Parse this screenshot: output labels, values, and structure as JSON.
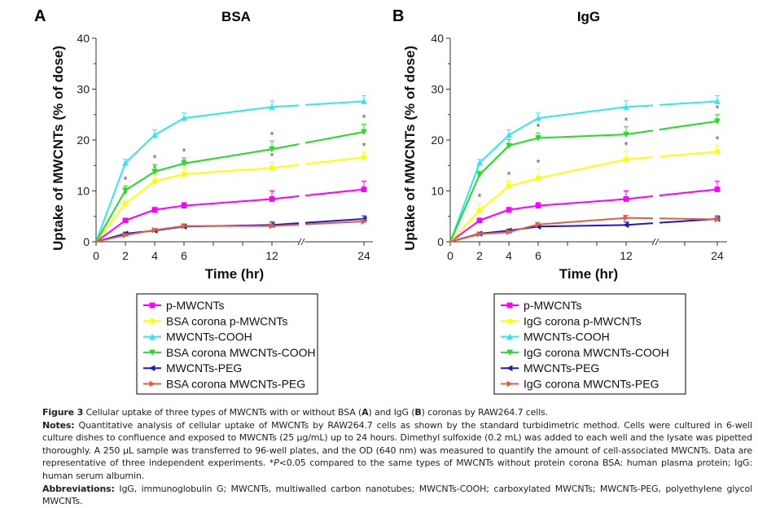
{
  "chart_data": [
    {
      "type": "line",
      "panel_label": "A",
      "title": "BSA",
      "xlabel": "Time (hr)",
      "ylabel": "Uptake of MWCNTs (% of dose)",
      "x": [
        0,
        2,
        4,
        6,
        12,
        24
      ],
      "xticks": [
        "0",
        "2",
        "4",
        "6",
        "12",
        "24"
      ],
      "yticks": [
        "0",
        "10",
        "20",
        "30",
        "40"
      ],
      "ylim": [
        0,
        40
      ],
      "axis_break": "between 12 and 24",
      "grid": false,
      "legend_position": "bottom",
      "series": [
        {
          "name": "p-MWCNTs",
          "color": "#ff00ff",
          "marker": "square",
          "values": [
            0,
            4.2,
            6.3,
            7.1,
            8.4,
            10.3
          ],
          "errors": [
            0,
            0.4,
            0.4,
            0.6,
            1.6,
            1.6
          ],
          "sig": [
            false,
            false,
            false,
            false,
            false,
            false
          ]
        },
        {
          "name": "BSA corona p-MWCNTs",
          "color": "#ffff00",
          "marker": "circle",
          "values": [
            0,
            7.5,
            11.9,
            13.3,
            14.5,
            16.6
          ],
          "errors": [
            0,
            0.7,
            1.4,
            1.2,
            1.1,
            1.0
          ],
          "sig": [
            false,
            true,
            true,
            true,
            true,
            true
          ]
        },
        {
          "name": "MWCNTs-COOH",
          "color": "#33e6f2",
          "marker": "triangle-up",
          "values": [
            0,
            15.5,
            21.0,
            24.3,
            26.5,
            27.6
          ],
          "errors": [
            0,
            0.7,
            1.0,
            1.0,
            1.2,
            1.1
          ],
          "sig": [
            false,
            false,
            false,
            false,
            false,
            false
          ]
        },
        {
          "name": "BSA corona MWCNTs-COOH",
          "color": "#22dd22",
          "marker": "triangle-down",
          "values": [
            0,
            10.1,
            13.8,
            15.4,
            18.2,
            21.6
          ],
          "errors": [
            0,
            0.9,
            1.4,
            1.1,
            1.6,
            1.5
          ],
          "sig": [
            false,
            true,
            true,
            true,
            true,
            true
          ]
        },
        {
          "name": "MWCNTs-PEG",
          "color": "#1a1acc",
          "marker": "triangle-left",
          "values": [
            0,
            1.6,
            2.2,
            3.0,
            3.3,
            4.5
          ],
          "errors": [
            0,
            0.3,
            0.3,
            0.5,
            0.6,
            0.6
          ],
          "sig": [
            false,
            false,
            false,
            false,
            false,
            false
          ]
        },
        {
          "name": "BSA corona MWCNTs-PEG",
          "color": "#e06040",
          "marker": "triangle-right",
          "values": [
            0,
            1.3,
            2.3,
            3.1,
            3.1,
            4.0
          ],
          "errors": [
            0,
            0.3,
            0.3,
            0.4,
            0.4,
            0.4
          ],
          "sig": [
            false,
            false,
            false,
            false,
            false,
            false
          ]
        }
      ]
    },
    {
      "type": "line",
      "panel_label": "B",
      "title": "IgG",
      "xlabel": "Time (hr)",
      "ylabel": "Uptake of MWCNTs (% of dose)",
      "x": [
        0,
        2,
        4,
        6,
        12,
        24
      ],
      "xticks": [
        "0",
        "2",
        "4",
        "6",
        "12",
        "24"
      ],
      "yticks": [
        "0",
        "10",
        "20",
        "30",
        "40"
      ],
      "ylim": [
        0,
        40
      ],
      "axis_break": "between 12 and 24",
      "grid": false,
      "legend_position": "bottom",
      "series": [
        {
          "name": "p-MWCNTs",
          "color": "#ff00ff",
          "marker": "square",
          "values": [
            0,
            4.2,
            6.3,
            7.1,
            8.4,
            10.3
          ],
          "errors": [
            0,
            0.4,
            0.4,
            0.6,
            1.6,
            1.6
          ],
          "sig": [
            false,
            false,
            false,
            false,
            false,
            false
          ]
        },
        {
          "name": "IgG corona p-MWCNTs",
          "color": "#ffff00",
          "marker": "circle",
          "values": [
            0,
            6.2,
            10.9,
            12.5,
            16.2,
            17.7
          ],
          "errors": [
            0,
            1.4,
            1.0,
            1.8,
            1.6,
            1.2
          ],
          "sig": [
            false,
            true,
            true,
            true,
            true,
            true
          ]
        },
        {
          "name": "MWCNTs-COOH",
          "color": "#33e6f2",
          "marker": "triangle-up",
          "values": [
            0,
            15.5,
            21.0,
            24.3,
            26.5,
            27.6
          ],
          "errors": [
            0,
            0.7,
            1.0,
            1.0,
            1.2,
            1.1
          ],
          "sig": [
            false,
            false,
            false,
            false,
            false,
            false
          ]
        },
        {
          "name": "IgG corona MWCNTs-COOH",
          "color": "#22dd22",
          "marker": "triangle-down",
          "values": [
            0,
            13.2,
            18.9,
            20.4,
            21.1,
            23.7
          ],
          "errors": [
            0,
            0.7,
            1.2,
            1.0,
            1.5,
            1.3
          ],
          "sig": [
            false,
            false,
            false,
            true,
            true,
            true
          ]
        },
        {
          "name": "MWCNTs-PEG",
          "color": "#1a1acc",
          "marker": "triangle-left",
          "values": [
            0,
            1.6,
            2.2,
            3.0,
            3.3,
            4.5
          ],
          "errors": [
            0,
            0.3,
            0.3,
            0.5,
            0.6,
            0.6
          ],
          "sig": [
            false,
            false,
            false,
            false,
            false,
            false
          ]
        },
        {
          "name": "IgG corona MWCNTs-PEG",
          "color": "#e06040",
          "marker": "triangle-right",
          "values": [
            0,
            1.5,
            1.9,
            3.4,
            4.7,
            4.4
          ],
          "errors": [
            0,
            0.3,
            0.3,
            0.4,
            0.5,
            0.4
          ],
          "sig": [
            false,
            false,
            false,
            false,
            false,
            false
          ]
        }
      ]
    }
  ],
  "caption": {
    "figure_label": "Figure 3",
    "figure_text": " Cellular uptake of three types of MWCNTs with or without BSA (",
    "bold_a": "A",
    "mid_text": ") and IgG (",
    "bold_b": "B",
    "end_text": ") coronas by RAW264.7 cells.",
    "notes_label": "Notes:",
    "notes_text": " Quantitative analysis of cellular uptake of MWCNTs by RAW264.7 cells as shown by the standard turbidimetric method. Cells were cultured in 6-well culture dishes to confluence and exposed to MWCNTs (25 µg/mL) up to 24 hours. Dimethyl sulfoxide (0.2 mL) was added to each well and the lysate was pipetted thoroughly. A 250 µL sample was transferred to 96-well plates, and the OD (640 nm) was measured to quantify the amount of cell-associated MWCNTs. Data are representative of three independent experiments. *",
    "notes_p": "P",
    "notes_text2": "<0.05 compared to the same types of MWCNTs without protein corona BSA: human plasma protein; IgG: human serum albumin.",
    "abbrev_label": "Abbreviations:",
    "abbrev_text": " IgG, immunoglobulin G; MWCNTs, multiwalled carbon nanotubes; MWCNTs-COOH; carboxylated MWCNTs; MWCNTs-PEG, polyethylene glycol MWCNTs."
  }
}
